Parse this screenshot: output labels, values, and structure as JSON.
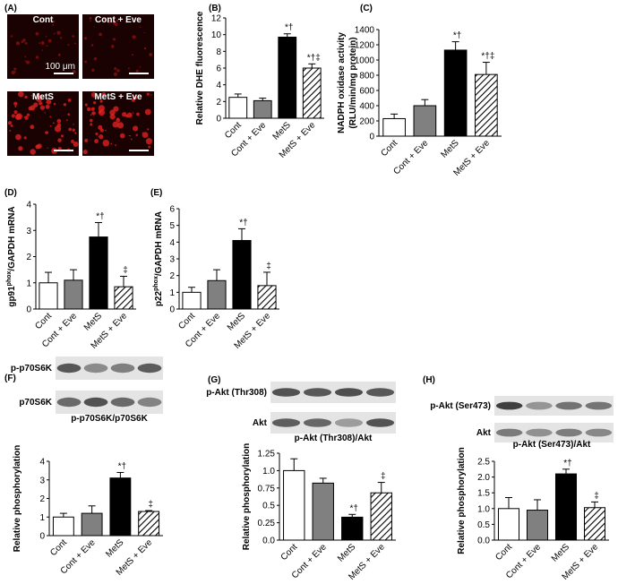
{
  "image_panel": {
    "label": "(A)",
    "images": [
      "Cont",
      "Cont + Eve",
      "MetS",
      "MetS + Eve"
    ],
    "scale_bar": "100 μm"
  },
  "chart_data": [
    {
      "type": "bar",
      "panel_label": "(B)",
      "y_label": "Relative DHE fluorescence",
      "categories": [
        "Cont",
        "Cont + Eve",
        "MetS",
        "MetS + Eve"
      ],
      "values": [
        2.5,
        2.1,
        9.7,
        6.0
      ],
      "errors": [
        0.4,
        0.3,
        0.4,
        0.5
      ],
      "bar_labels": [
        null,
        null,
        "*†",
        "*†‡"
      ],
      "colors": [
        "#ffffff",
        "#808080",
        "#000000",
        "#ffffff"
      ],
      "hatched": [
        false,
        false,
        false,
        true
      ],
      "ylim": [
        0,
        12
      ],
      "yticks": [
        0,
        2,
        4,
        6,
        8,
        10,
        12
      ]
    },
    {
      "type": "bar",
      "panel_label": "(C)",
      "y_label": [
        "NADPH oxidase activity",
        "(RLU/min/mg protein)"
      ],
      "categories": [
        "Cont",
        "Cont + Eve",
        "MetS",
        "MetS + Eve"
      ],
      "values": [
        230,
        400,
        1130,
        810
      ],
      "errors": [
        60,
        80,
        110,
        160
      ],
      "bar_labels": [
        null,
        null,
        "*†",
        "*†‡"
      ],
      "colors": [
        "#ffffff",
        "#808080",
        "#000000",
        "#ffffff"
      ],
      "hatched": [
        false,
        false,
        false,
        true
      ],
      "ylim": [
        0,
        1400
      ],
      "yticks": [
        0,
        200,
        400,
        600,
        800,
        1000,
        1200,
        1400
      ]
    },
    {
      "type": "bar",
      "panel_label": "(D)",
      "y_label": {
        "base": "gp91",
        "sup": "phox",
        "rest": "/GAPDH mRNA"
      },
      "categories": [
        "Cont",
        "Cont + Eve",
        "MetS",
        "MetS + Eve"
      ],
      "values": [
        1.0,
        1.1,
        2.75,
        0.85
      ],
      "errors": [
        0.4,
        0.4,
        0.55,
        0.4
      ],
      "bar_labels": [
        null,
        null,
        "*†",
        "‡"
      ],
      "colors": [
        "#ffffff",
        "#808080",
        "#000000",
        "#ffffff"
      ],
      "hatched": [
        false,
        false,
        false,
        true
      ],
      "ylim": [
        0,
        4
      ],
      "yticks": [
        0,
        1,
        2,
        3,
        4
      ]
    },
    {
      "type": "bar",
      "panel_label": "(E)",
      "y_label": {
        "base": "p22",
        "sup": "phox",
        "rest": "/GAPDH mRNA"
      },
      "categories": [
        "Cont",
        "Cont + Eve",
        "MetS",
        "MetS + Eve"
      ],
      "values": [
        1.0,
        1.7,
        4.1,
        1.4
      ],
      "errors": [
        0.3,
        0.65,
        0.7,
        0.8
      ],
      "bar_labels": [
        null,
        null,
        "*†",
        "‡"
      ],
      "colors": [
        "#ffffff",
        "#808080",
        "#000000",
        "#ffffff"
      ],
      "hatched": [
        false,
        false,
        false,
        true
      ],
      "ylim": [
        0,
        6
      ],
      "yticks": [
        0,
        1,
        2,
        3,
        4,
        5,
        6
      ]
    },
    {
      "type": "bar",
      "panel_label": "(F)",
      "title": "p-p70S6K/p70S6K",
      "blot_labels": [
        "p-p70S6K",
        "p70S6K"
      ],
      "y_label": "Relative phosphorylation",
      "categories": [
        "Cont",
        "Cont + Eve",
        "MetS",
        "MetS + Eve"
      ],
      "values": [
        1.0,
        1.2,
        3.1,
        1.3
      ],
      "errors": [
        0.2,
        0.4,
        0.3,
        0.05
      ],
      "bar_labels": [
        null,
        null,
        "*†",
        "‡"
      ],
      "colors": [
        "#ffffff",
        "#808080",
        "#000000",
        "#ffffff"
      ],
      "hatched": [
        false,
        false,
        false,
        true
      ],
      "ylim": [
        0,
        4
      ],
      "yticks": [
        0,
        1,
        2,
        3,
        4
      ]
    },
    {
      "type": "bar",
      "panel_label": "(G)",
      "title": "p-Akt (Thr308)/Akt",
      "blot_labels": [
        "p-Akt (Thr308)",
        "Akt"
      ],
      "y_label": "Relative phosphorylation",
      "categories": [
        "Cont",
        "Cont + Eve",
        "MetS",
        "MetS + Eve"
      ],
      "values": [
        1.0,
        0.82,
        0.33,
        0.68
      ],
      "errors": [
        0.17,
        0.07,
        0.04,
        0.15
      ],
      "bar_labels": [
        null,
        null,
        "*†",
        "‡"
      ],
      "colors": [
        "#ffffff",
        "#808080",
        "#000000",
        "#ffffff"
      ],
      "hatched": [
        false,
        false,
        false,
        true
      ],
      "ylim": [
        0,
        1.25
      ],
      "yticks": [
        {
          "value": 0,
          "label": "0.0"
        },
        0.25,
        0.5,
        0.75,
        {
          "value": 1,
          "label": "1.0"
        },
        1.25
      ]
    },
    {
      "type": "bar",
      "panel_label": "(H)",
      "title": "p-Akt (Ser473)/Akt",
      "blot_labels": [
        "p-Akt (Ser473)",
        "Akt"
      ],
      "y_label": "Relative phosphorylation",
      "categories": [
        "Cont",
        "Cont + Eve",
        "MetS",
        "MetS + Eve"
      ],
      "values": [
        1.0,
        0.95,
        2.1,
        1.03
      ],
      "errors": [
        0.35,
        0.33,
        0.15,
        0.18
      ],
      "bar_labels": [
        null,
        null,
        "*†",
        "‡"
      ],
      "colors": [
        "#ffffff",
        "#808080",
        "#000000",
        "#ffffff"
      ],
      "hatched": [
        false,
        false,
        false,
        true
      ],
      "ylim": [
        0,
        2.5
      ],
      "yticks": [
        {
          "value": 0,
          "label": "0.0"
        },
        0.5,
        {
          "value": 1,
          "label": "1.0"
        },
        1.5,
        {
          "value": 2,
          "label": "2.0"
        },
        2.5
      ]
    }
  ]
}
